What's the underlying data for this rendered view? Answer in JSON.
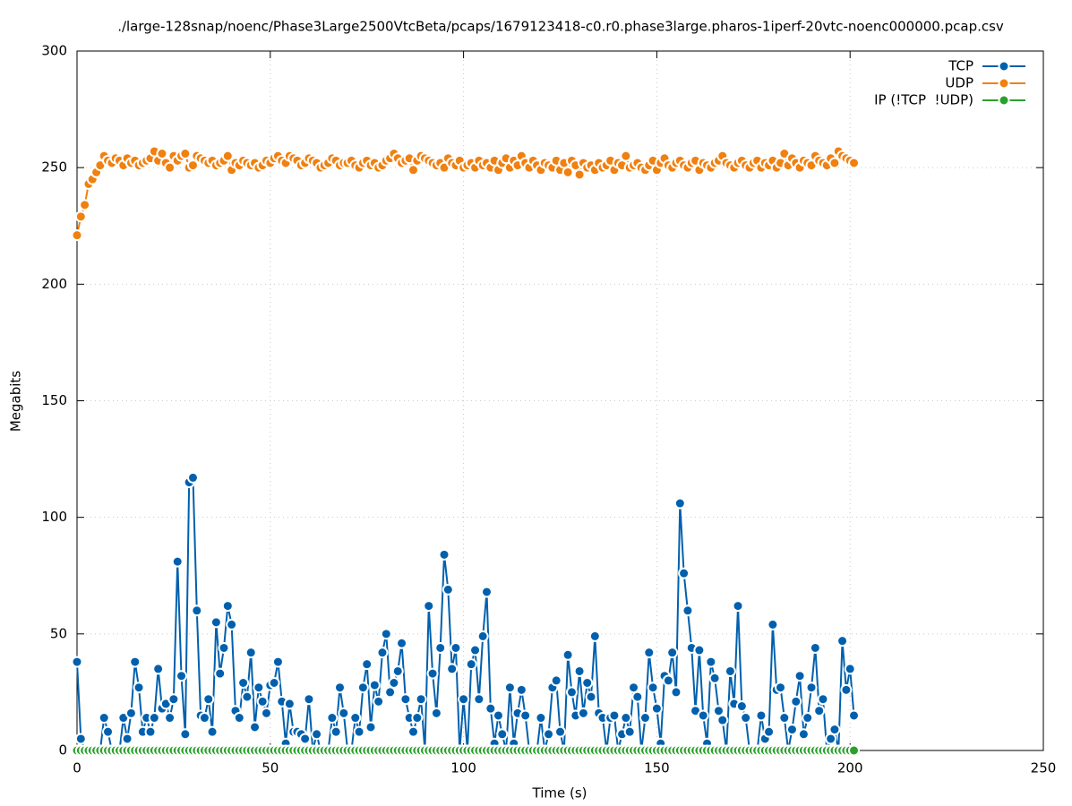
{
  "chart_data": {
    "type": "line",
    "title": "./large-128snap/noenc/Phase3Large2500VtcBeta/pcaps/1679123418-c0.r0.phase3large.pharos-1iperf-20vtc-noenc000000.pcap.csv",
    "x_label": "Time (s)",
    "y_label": "Megabits",
    "x": [
      0,
      1,
      2,
      3,
      4,
      5,
      6,
      7,
      8,
      9,
      10,
      11,
      12,
      13,
      14,
      15,
      16,
      17,
      18,
      19,
      20,
      21,
      22,
      23,
      24,
      25,
      26,
      27,
      28,
      29,
      30,
      31,
      32,
      33,
      34,
      35,
      36,
      37,
      38,
      39,
      40,
      41,
      42,
      43,
      44,
      45,
      46,
      47,
      48,
      49,
      50,
      51,
      52,
      53,
      54,
      55,
      56,
      57,
      58,
      59,
      60,
      61,
      62,
      63,
      64,
      65,
      66,
      67,
      68,
      69,
      70,
      71,
      72,
      73,
      74,
      75,
      76,
      77,
      78,
      79,
      80,
      81,
      82,
      83,
      84,
      85,
      86,
      87,
      88,
      89,
      90,
      91,
      92,
      93,
      94,
      95,
      96,
      97,
      98,
      99,
      100,
      101,
      102,
      103,
      104,
      105,
      106,
      107,
      108,
      109,
      110,
      111,
      112,
      113,
      114,
      115,
      116,
      117,
      118,
      119,
      120,
      121,
      122,
      123,
      124,
      125,
      126,
      127,
      128,
      129,
      130,
      131,
      132,
      133,
      134,
      135,
      136,
      137,
      138,
      139,
      140,
      141,
      142,
      143,
      144,
      145,
      146,
      147,
      148,
      149,
      150,
      151,
      152,
      153,
      154,
      155,
      156,
      157,
      158,
      159,
      160,
      161,
      162,
      163,
      164,
      165,
      166,
      167,
      168,
      169,
      170,
      171,
      172,
      173,
      174,
      175,
      176,
      177,
      178,
      179,
      180,
      181,
      182,
      183,
      184,
      185,
      186,
      187,
      188,
      189,
      190,
      191,
      192,
      193,
      194,
      195,
      196,
      197,
      198,
      199,
      200,
      201
    ],
    "series": [
      {
        "name": "TCP",
        "color": "#0060ad",
        "values": [
          38,
          5,
          0,
          0,
          0,
          0,
          0,
          14,
          8,
          0,
          0,
          0,
          14,
          5,
          16,
          38,
          27,
          8,
          14,
          8,
          14,
          35,
          18,
          20,
          14,
          22,
          81,
          32,
          7,
          115,
          117,
          60,
          15,
          14,
          22,
          8,
          55,
          33,
          44,
          62,
          54,
          17,
          14,
          29,
          23,
          42,
          10,
          27,
          21,
          16,
          28,
          29,
          38,
          21,
          3,
          20,
          8,
          8,
          7,
          5,
          22,
          0,
          7,
          0,
          0,
          0,
          14,
          8,
          27,
          16,
          0,
          0,
          14,
          8,
          27,
          37,
          10,
          28,
          21,
          42,
          50,
          25,
          29,
          34,
          46,
          22,
          14,
          8,
          14,
          22,
          0,
          62,
          33,
          16,
          44,
          84,
          69,
          35,
          44,
          0,
          22,
          0,
          37,
          43,
          22,
          49,
          68,
          18,
          3,
          15,
          7,
          0,
          27,
          3,
          16,
          26,
          15,
          0,
          0,
          0,
          14,
          0,
          7,
          27,
          30,
          8,
          0,
          41,
          25,
          15,
          34,
          16,
          29,
          23,
          49,
          16,
          14,
          0,
          14,
          15,
          0,
          7,
          14,
          8,
          27,
          23,
          0,
          14,
          42,
          27,
          18,
          3,
          32,
          30,
          42,
          25,
          106,
          76,
          60,
          44,
          17,
          43,
          15,
          3,
          38,
          31,
          17,
          13,
          0,
          34,
          20,
          62,
          19,
          14,
          0,
          0,
          0,
          15,
          5,
          8,
          54,
          26,
          27,
          14,
          0,
          9,
          21,
          32,
          7,
          14,
          27,
          44,
          17,
          22,
          0,
          5,
          9,
          0,
          47,
          26,
          35,
          15
        ]
      },
      {
        "name": "UDP",
        "color": "#f08010",
        "values": [
          221,
          229,
          234,
          243,
          245,
          248,
          251,
          255,
          253,
          252,
          254,
          253,
          251,
          254,
          252,
          253,
          251,
          252,
          253,
          254,
          257,
          253,
          256,
          252,
          250,
          255,
          253,
          255,
          256,
          250,
          251,
          255,
          254,
          253,
          252,
          253,
          251,
          252,
          253,
          255,
          249,
          252,
          251,
          253,
          252,
          251,
          252,
          250,
          251,
          253,
          252,
          254,
          255,
          253,
          252,
          255,
          254,
          253,
          251,
          252,
          254,
          253,
          252,
          250,
          251,
          252,
          254,
          253,
          251,
          252,
          252,
          253,
          251,
          250,
          252,
          253,
          251,
          252,
          250,
          251,
          253,
          254,
          256,
          254,
          252,
          253,
          254,
          249,
          253,
          255,
          254,
          253,
          252,
          251,
          252,
          250,
          254,
          252,
          251,
          253,
          250,
          251,
          252,
          250,
          253,
          251,
          252,
          250,
          253,
          249,
          252,
          254,
          250,
          253,
          251,
          255,
          252,
          250,
          253,
          251,
          249,
          252,
          251,
          250,
          253,
          249,
          252,
          248,
          253,
          251,
          247,
          252,
          250,
          251,
          249,
          252,
          250,
          251,
          253,
          249,
          252,
          251,
          255,
          250,
          251,
          252,
          250,
          249,
          251,
          253,
          249,
          252,
          254,
          251,
          250,
          252,
          253,
          251,
          250,
          252,
          253,
          249,
          252,
          251,
          250,
          252,
          253,
          255,
          252,
          251,
          250,
          252,
          253,
          251,
          250,
          252,
          253,
          250,
          252,
          251,
          253,
          250,
          252,
          256,
          251,
          254,
          252,
          250,
          253,
          252,
          251,
          255,
          253,
          252,
          251,
          254,
          252,
          257,
          255,
          254,
          253,
          252
        ]
      },
      {
        "name": "IP (!TCP  !UDP)",
        "color": "#2ca02c",
        "values": [
          0,
          0,
          0,
          0,
          0,
          0,
          0,
          0,
          0,
          0,
          0,
          0,
          0,
          0,
          0,
          0,
          0,
          0,
          0,
          0,
          0,
          0,
          0,
          0,
          0,
          0,
          0,
          0,
          0,
          0,
          0,
          0,
          0,
          0,
          0,
          0,
          0,
          0,
          0,
          0,
          0,
          0,
          0,
          0,
          0,
          0,
          0,
          0,
          0,
          0,
          0,
          0,
          0,
          0,
          0,
          0,
          0,
          0,
          0,
          0,
          0,
          0,
          0,
          0,
          0,
          0,
          0,
          0,
          0,
          0,
          0,
          0,
          0,
          0,
          0,
          0,
          0,
          0,
          0,
          0,
          0,
          0,
          0,
          0,
          0,
          0,
          0,
          0,
          0,
          0,
          0,
          0,
          0,
          0,
          0,
          0,
          0,
          0,
          0,
          0,
          0,
          0,
          0,
          0,
          0,
          0,
          0,
          0,
          0,
          0,
          0,
          0,
          0,
          0,
          0,
          0,
          0,
          0,
          0,
          0,
          0,
          0,
          0,
          0,
          0,
          0,
          0,
          0,
          0,
          0,
          0,
          0,
          0,
          0,
          0,
          0,
          0,
          0,
          0,
          0,
          0,
          0,
          0,
          0,
          0,
          0,
          0,
          0,
          0,
          0,
          0,
          0,
          0,
          0,
          0,
          0,
          0,
          0,
          0,
          0,
          0,
          0,
          0,
          0,
          0,
          0,
          0,
          0,
          0,
          0,
          0,
          0,
          0,
          0,
          0,
          0,
          0,
          0,
          0,
          0,
          0,
          0,
          0,
          0,
          0,
          0,
          0,
          0,
          0,
          0,
          0,
          0,
          0,
          0,
          0,
          0,
          0,
          0,
          0,
          0,
          0,
          0
        ]
      }
    ],
    "xlim": [
      0,
      250
    ],
    "xticks": [
      0,
      50,
      100,
      150,
      200,
      250
    ],
    "ylim": [
      0,
      300
    ],
    "yticks": [
      0,
      50,
      100,
      150,
      200,
      250,
      300
    ],
    "grid": true,
    "legend": "top-right"
  }
}
